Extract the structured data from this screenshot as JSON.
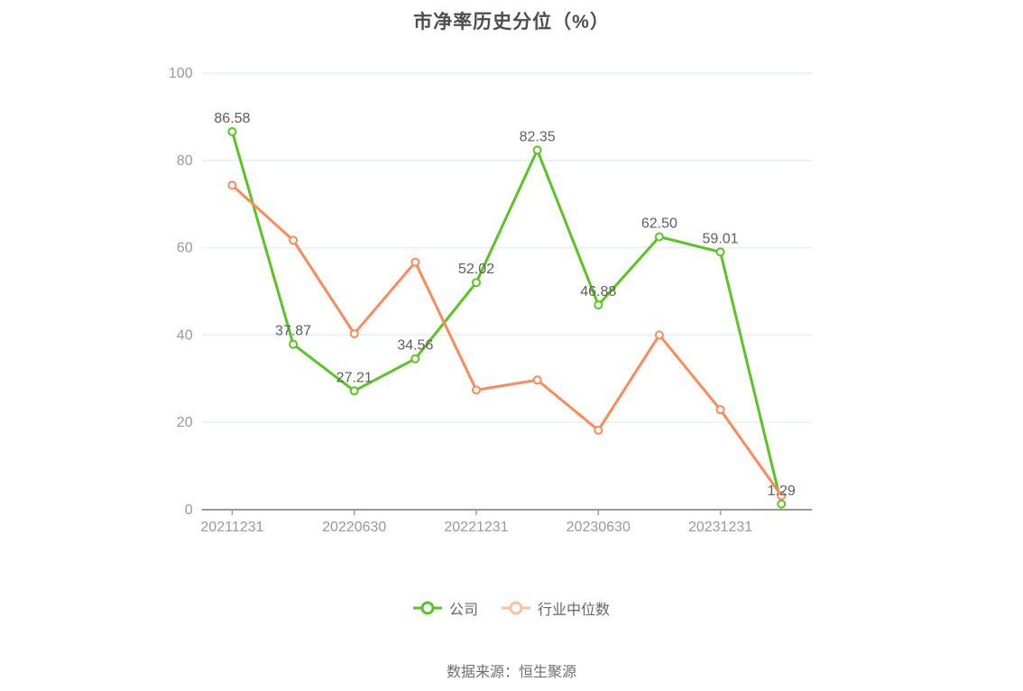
{
  "title": "市净率历史分位（%）",
  "source": "数据来源：恒生聚源",
  "colors": {
    "company_line": "#5cc327",
    "industry_line": "#fc8b5b",
    "industry_legend_icon": "#ffc0a1",
    "gridline": "#e9eef4",
    "axis_line": "#999999",
    "tick_label": "#999999",
    "data_label": "#5e5e5e",
    "title_text": "#4d4d4d"
  },
  "chart_data": {
    "type": "line",
    "title": "市净率历史分位（%）",
    "xlabel": "",
    "ylabel": "",
    "ylim": [
      0,
      100
    ],
    "y_ticks": [
      0,
      20,
      40,
      60,
      80,
      100
    ],
    "grid": true,
    "legend_position": "bottom",
    "point_count": 10,
    "x_tick_labels": [
      "20211231",
      "20220630",
      "20221231",
      "20230630",
      "20231231"
    ],
    "x_tick_indices": [
      0,
      2,
      4,
      6,
      8
    ],
    "series": [
      {
        "name": "公司",
        "color": "#5cc327",
        "values": [
          86.58,
          37.87,
          27.21,
          34.56,
          52.02,
          82.35,
          46.88,
          62.5,
          59.01,
          1.29
        ],
        "point_labels": [
          "86.58",
          "37.87",
          "27.21",
          "34.56",
          "52.02",
          "82.35",
          "46.88",
          "62.50",
          "59.01",
          "1.29"
        ]
      },
      {
        "name": "行业中位数",
        "color": "#fc8b5b",
        "values": [
          74.3,
          61.7,
          40.3,
          56.7,
          27.4,
          29.7,
          18.2,
          40.0,
          22.9,
          3.2
        ],
        "point_labels": null
      }
    ]
  }
}
